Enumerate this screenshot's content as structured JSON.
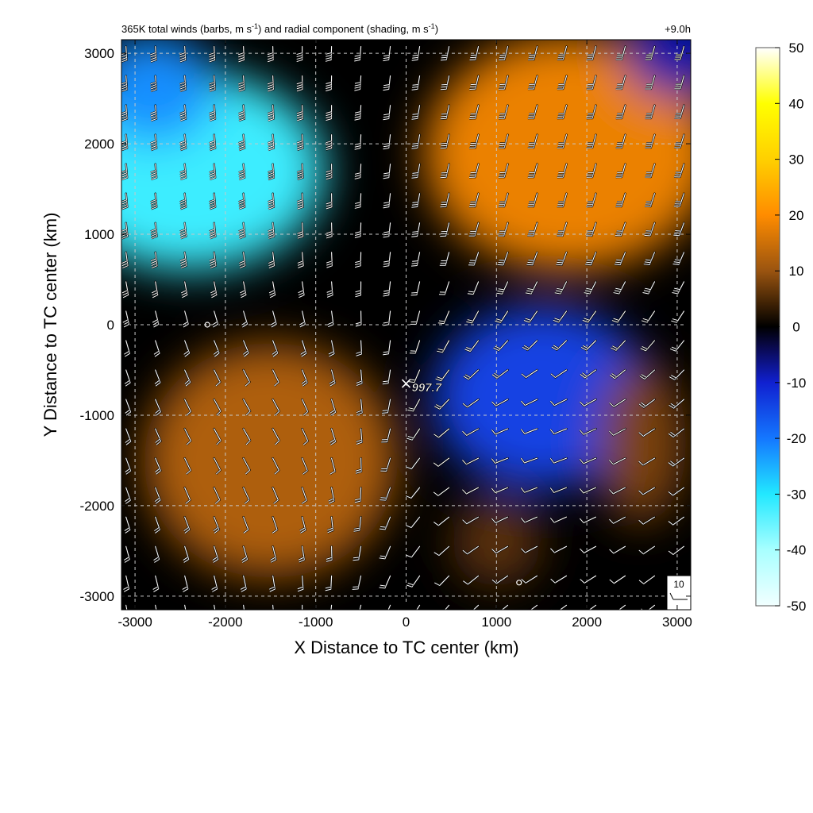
{
  "chart_data": {
    "type": "heatmap",
    "title": "365K total winds (barbs, m s-1) and radial component (shading, m s-1)",
    "title_parts": {
      "pre": "365K total winds (barbs, m s",
      "sup1": "-1",
      "mid": ") and radial component (shading, m s",
      "sup2": "-1",
      "post": ")"
    },
    "time_label": "+9.0h",
    "xlabel": "X Distance to TC center (km)",
    "ylabel": "Y Distance to TC center (km)",
    "xlim": [
      -3150,
      3150
    ],
    "ylim": [
      -3150,
      3150
    ],
    "xticks": [
      -3000,
      -2000,
      -1000,
      0,
      1000,
      2000,
      3000
    ],
    "yticks": [
      -3000,
      -2000,
      -1000,
      0,
      1000,
      2000,
      3000
    ],
    "grid": true,
    "colorbar": {
      "min": -50,
      "max": 50,
      "ticks": [
        50,
        40,
        30,
        20,
        10,
        0,
        -10,
        -20,
        -30,
        -40,
        -50
      ],
      "stops": [
        {
          "v": -50,
          "color": "#f2ffff"
        },
        {
          "v": -40,
          "color": "#a8ffff"
        },
        {
          "v": -30,
          "color": "#22e8ff"
        },
        {
          "v": -20,
          "color": "#1477ff"
        },
        {
          "v": -10,
          "color": "#1020d0"
        },
        {
          "v": -4,
          "color": "#0a0a55"
        },
        {
          "v": 0,
          "color": "#000000"
        },
        {
          "v": 4,
          "color": "#3d2104"
        },
        {
          "v": 10,
          "color": "#9a5410"
        },
        {
          "v": 20,
          "color": "#ff8c00"
        },
        {
          "v": 30,
          "color": "#ffd000"
        },
        {
          "v": 40,
          "color": "#ffff00"
        },
        {
          "v": 50,
          "color": "#ffffff"
        }
      ]
    },
    "shading_regions": [
      {
        "x": -2400,
        "y": 1700,
        "rx": 1500,
        "ry": 1100,
        "value": -32
      },
      {
        "x": -2800,
        "y": 2600,
        "rx": 700,
        "ry": 600,
        "value": -22
      },
      {
        "x": 1800,
        "y": 1900,
        "rx": 1600,
        "ry": 1300,
        "value": 18
      },
      {
        "x": 3000,
        "y": 3000,
        "rx": 600,
        "ry": 500,
        "value": -8
      },
      {
        "x": -1500,
        "y": -1500,
        "rx": 1400,
        "ry": 1300,
        "value": 12
      },
      {
        "x": 1500,
        "y": -800,
        "rx": 1200,
        "ry": 1000,
        "value": -14
      },
      {
        "x": 2600,
        "y": -1300,
        "rx": 500,
        "ry": 900,
        "value": 8
      },
      {
        "x": 1000,
        "y": -2400,
        "rx": 500,
        "ry": 500,
        "value": 6
      }
    ],
    "center_marker": {
      "x": 0,
      "y": -650,
      "label": "997.7"
    },
    "calm_markers": [
      {
        "x": -2200,
        "y": 0
      },
      {
        "x": 1250,
        "y": -2850
      }
    ],
    "barb_grid": {
      "spacing": 325,
      "start": -3100
    },
    "wind_regions": [
      {
        "x": -2200,
        "y": 1800,
        "speed": 45,
        "direction": 275
      },
      {
        "x": 1800,
        "y": 2000,
        "speed": 35,
        "direction": 255
      },
      {
        "x": -1800,
        "y": -1000,
        "speed": 12,
        "direction": 300
      },
      {
        "x": 1500,
        "y": -1500,
        "speed": 10,
        "direction": 200
      }
    ],
    "reference_barb": {
      "label": "10"
    }
  }
}
